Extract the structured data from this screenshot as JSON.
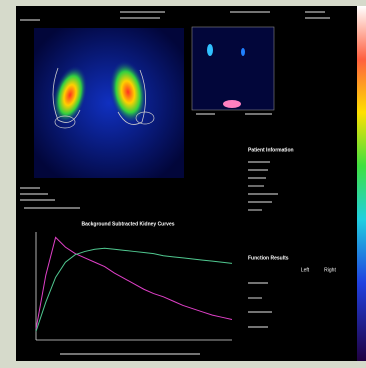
{
  "report": {
    "patient_info_title": "Patient Information",
    "function_title": "Function Results",
    "columns": [
      "Left",
      "Right"
    ]
  },
  "curves": {
    "type": "line",
    "title": "Background Subtracted Kidney Curves",
    "xlim": [
      0,
      20
    ],
    "ylim": [
      0,
      100
    ],
    "x": [
      0,
      1,
      2,
      3,
      4,
      5,
      6,
      7,
      8,
      9,
      10,
      11,
      12,
      13,
      14,
      15,
      16,
      17,
      18,
      19,
      20
    ],
    "series": [
      {
        "color": "#e040c8",
        "values": [
          10,
          60,
          95,
          86,
          80,
          76,
          72,
          68,
          62,
          57,
          52,
          47,
          43,
          40,
          36,
          32,
          29,
          26,
          23,
          21,
          19
        ]
      },
      {
        "color": "#50c890",
        "values": [
          8,
          35,
          58,
          72,
          79,
          82,
          84,
          85,
          84,
          83,
          82,
          81,
          80,
          78,
          77,
          76,
          75,
          74,
          73,
          72,
          71
        ]
      }
    ]
  }
}
